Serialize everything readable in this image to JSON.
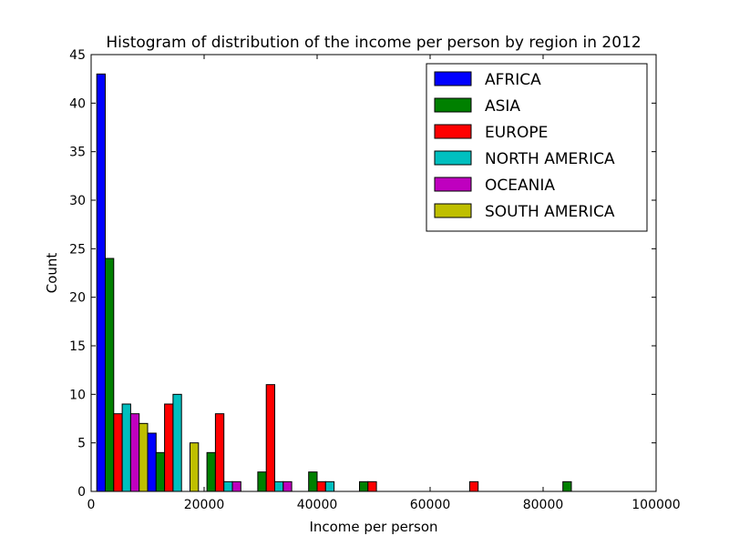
{
  "chart_data": {
    "type": "bar",
    "title": "Histogram of distribution of the income per person by region in 2012",
    "xlabel": "Income per person",
    "ylabel": "Count",
    "xlim": [
      0,
      100000
    ],
    "ylim": [
      0,
      45
    ],
    "xticks": [
      0,
      20000,
      40000,
      60000,
      80000,
      100000
    ],
    "yticks": [
      0,
      5,
      10,
      15,
      20,
      25,
      30,
      35,
      40,
      45
    ],
    "bin_edges": [
      1000,
      10000,
      19000,
      28000,
      37000,
      46000,
      55000,
      64000,
      73000,
      82000,
      91000
    ],
    "legend_position": "top-right",
    "grid": false,
    "series": [
      {
        "name": "AFRICA",
        "color": "#0000ff",
        "values": [
          43,
          6,
          0,
          0,
          0,
          0,
          0,
          0,
          0,
          0
        ]
      },
      {
        "name": "ASIA",
        "color": "#008000",
        "values": [
          24,
          4,
          4,
          2,
          2,
          1,
          0,
          0,
          0,
          1
        ]
      },
      {
        "name": "EUROPE",
        "color": "#ff0000",
        "values": [
          8,
          9,
          8,
          11,
          1,
          1,
          0,
          1,
          0,
          0
        ]
      },
      {
        "name": "NORTH AMERICA",
        "color": "#00bfbf",
        "values": [
          9,
          10,
          1,
          1,
          1,
          0,
          0,
          0,
          0,
          0
        ]
      },
      {
        "name": "OCEANIA",
        "color": "#bf00bf",
        "values": [
          8,
          0,
          1,
          1,
          0,
          0,
          0,
          0,
          0,
          0
        ]
      },
      {
        "name": "SOUTH AMERICA",
        "color": "#bfbf00",
        "values": [
          7,
          5,
          0,
          0,
          0,
          0,
          0,
          0,
          0,
          0
        ]
      }
    ]
  }
}
